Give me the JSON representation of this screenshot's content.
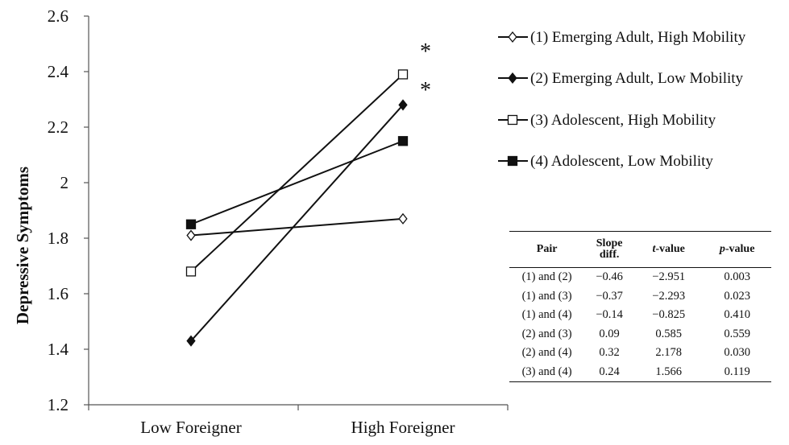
{
  "chart_data": {
    "type": "line",
    "ylabel": "Depressive Symptoms",
    "xlabel": "",
    "categories": [
      "Low Foreigner",
      "High Foreigner"
    ],
    "ylim": [
      1.2,
      2.6
    ],
    "yticks": [
      "1.2",
      "1.4",
      "1.6",
      "1.8",
      "2",
      "2.2",
      "2.4",
      "2.6"
    ],
    "grid": false,
    "legend_position": "right",
    "series": [
      {
        "name": "(1) Emerging Adult, High Mobility",
        "marker": "diamond-open",
        "values": [
          1.81,
          1.87
        ]
      },
      {
        "name": "(2) Emerging Adult, Low Mobility",
        "marker": "diamond-filled",
        "values": [
          1.43,
          2.28
        ]
      },
      {
        "name": "(3) Adolescent, High Mobility",
        "marker": "square-open",
        "values": [
          1.68,
          2.39
        ]
      },
      {
        "name": "(4) Adolescent, Low Mobility",
        "marker": "square-filled",
        "values": [
          1.85,
          2.15
        ]
      }
    ],
    "annotations": [
      "*",
      "*"
    ]
  },
  "table": {
    "headers": {
      "pair": "Pair",
      "slope_line1": "Slope",
      "slope_line2": "diff.",
      "t_italic": "t",
      "t_rest": "-value",
      "p_italic": "p",
      "p_rest": "-value"
    },
    "rows": [
      [
        "(1) and (2)",
        "−0.46",
        "−2.951",
        "0.003"
      ],
      [
        "(1) and (3)",
        "−0.37",
        "−2.293",
        "0.023"
      ],
      [
        "(1) and (4)",
        "−0.14",
        "−0.825",
        "0.410"
      ],
      [
        "(2) and (3)",
        "0.09",
        "0.585",
        "0.559"
      ],
      [
        "(2) and (4)",
        "0.32",
        "2.178",
        "0.030"
      ],
      [
        "(3) and (4)",
        "0.24",
        "1.566",
        "0.119"
      ]
    ]
  }
}
